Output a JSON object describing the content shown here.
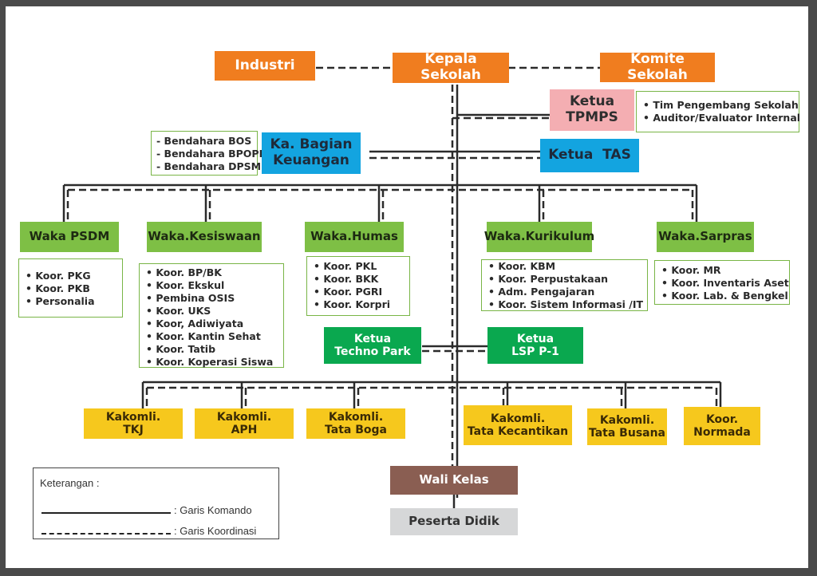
{
  "top": {
    "industri": "Industri",
    "kepala": "Kepala Sekolah",
    "komite": "Komite Sekolah"
  },
  "tpmps": {
    "title": "Ketua\nTPMPS",
    "items": [
      "Tim Pengembang Sekolah",
      "Auditor/Evaluator Internal"
    ]
  },
  "keuangan": {
    "title": "Ka. Bagian\nKeuangan",
    "items": [
      "Bendahara BOS",
      "Bendahara BPOPP",
      "Bendahara DPSM"
    ]
  },
  "tas": "Ketua  TAS",
  "wakas": [
    {
      "title": "Waka PSDM",
      "items": [
        "Koor. PKG",
        "Koor. PKB",
        "Personalia"
      ]
    },
    {
      "title": "Waka.Kesiswaan",
      "items": [
        "Koor. BP/BK",
        "Koor. Ekskul",
        "Pembina OSIS",
        "Koor. UKS",
        "Koor, Adiwiyata",
        "Koor. Kantin Sehat",
        "Koor. Tatib",
        "Koor. Koperasi Siswa"
      ]
    },
    {
      "title": "Waka.Humas",
      "items": [
        "Koor. PKL",
        "Koor. BKK",
        "Koor. PGRI",
        "Koor. Korpri"
      ]
    },
    {
      "title": "Waka.Kurikulum",
      "items": [
        "Koor. KBM",
        "Koor. Perpustakaan",
        "Adm. Pengajaran",
        "Koor. Sistem Informasi /IT"
      ]
    },
    {
      "title": "Waka.Sarpras",
      "items": [
        "Koor. MR",
        "Koor. Inventaris Aset",
        "Koor. Lab. & Bengkel"
      ]
    }
  ],
  "techno": "Ketua\nTechno Park",
  "lsp": "Ketua\nLSP P-1",
  "kakomli": [
    "Kakomli.\nTKJ",
    "Kakomli.\nAPH",
    "Kakomli.\nTata Boga",
    "Kakomli.\nTata Kecantikan",
    "Kakomli.\nTata Busana",
    "Koor.\nNormada"
  ],
  "wali": "Wali Kelas",
  "peserta": "Peserta Didik",
  "legend": {
    "title": "Keterangan :",
    "solid": ": Garis Komando",
    "dashed": ": Garis Koordinasi"
  }
}
